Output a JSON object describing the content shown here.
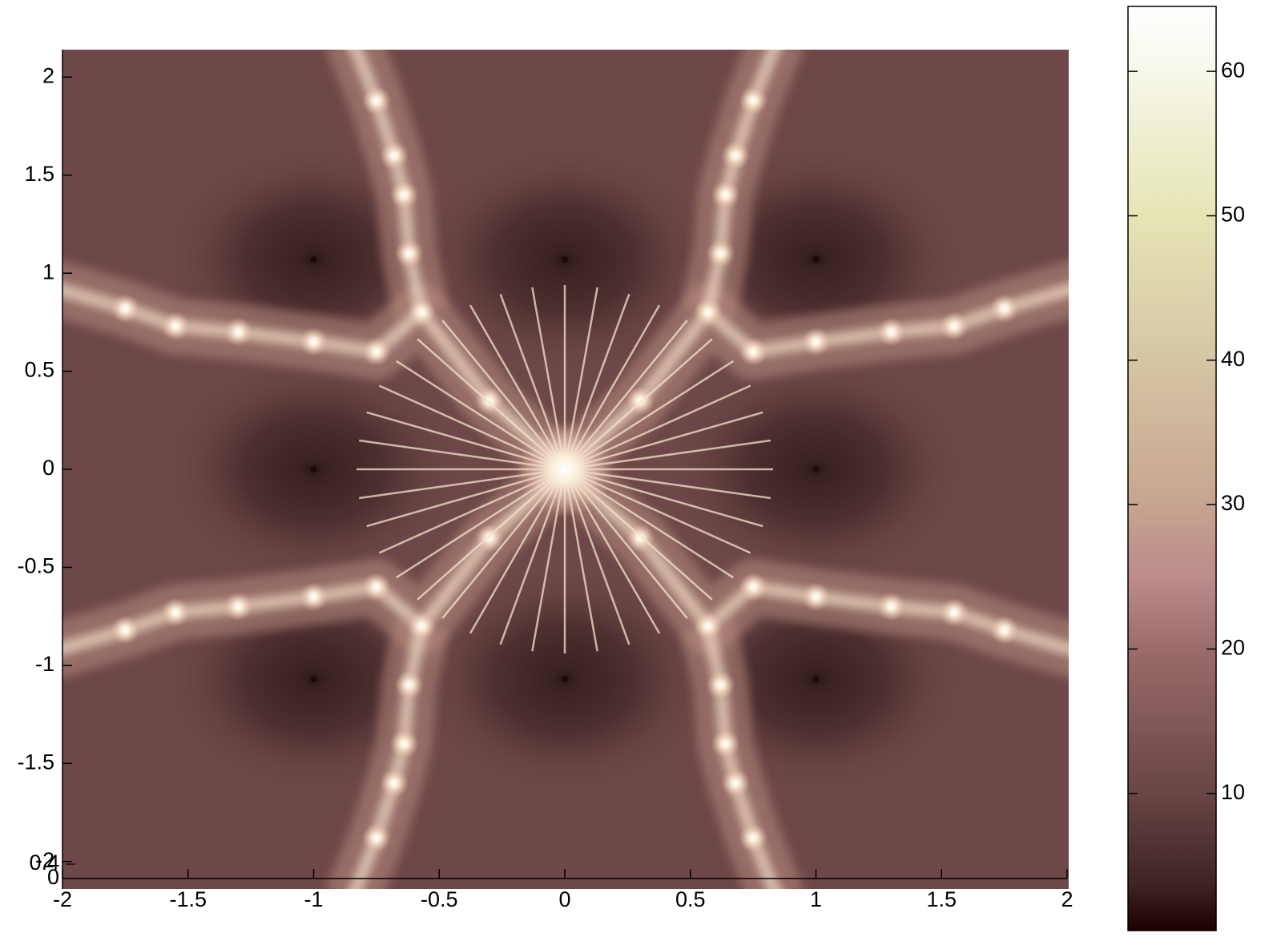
{
  "chart_data": [
    {
      "type": "image",
      "xlim": [
        -2,
        2
      ],
      "ylim": [
        -2.14,
        2.14
      ],
      "xticks": [
        -2,
        -1.5,
        -1,
        -0.5,
        0,
        0.5,
        1,
        1.5,
        2
      ],
      "yticks": [
        -2,
        -1.5,
        -1,
        -0.5,
        0,
        0.5,
        1,
        1.5,
        2
      ],
      "colorbar": {
        "lim": [
          0.5,
          64.5
        ],
        "ticks": [
          10,
          20,
          30,
          40,
          50,
          60
        ]
      }
    },
    {
      "type": "axis",
      "yticks": [
        0,
        0.4
      ]
    }
  ]
}
